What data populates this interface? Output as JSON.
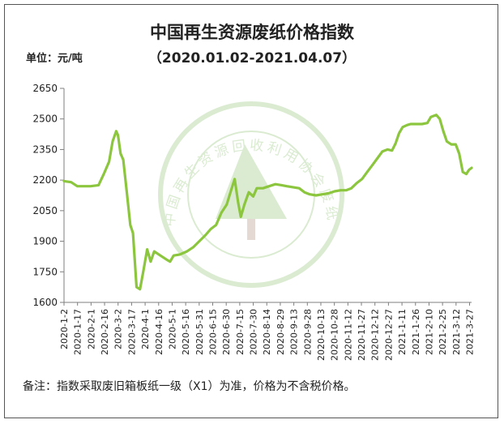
{
  "title": "中国再生资源废纸价格指数",
  "subtitle": "（2020.01.02-2021.04.07）",
  "unit_label": "单位：元/吨",
  "note": "备注：指数采取废旧箱板纸一级（X1）为准，价格为不含税价格。",
  "watermark_text": "中国再生资源回收利用协会废纸分会",
  "colors": {
    "line": "#8cc63f",
    "axis": "#7f7f7f",
    "grid": "#7f7f7f",
    "watermark": "#5aa832"
  },
  "chart_data": {
    "type": "line",
    "ylim": [
      1600,
      2650
    ],
    "yticks": [
      "1600",
      "1750",
      "1900",
      "2050",
      "2200",
      "2350",
      "2500",
      "2650"
    ],
    "categories": [
      "2020-1-2",
      "2020-1-17",
      "2020-2-1",
      "2020-2-16",
      "2020-3-2",
      "2020-3-17",
      "2020-4-1",
      "2020-4-16",
      "2020-5-1",
      "2020-5-16",
      "2020-5-31",
      "2020-6-15",
      "2020-6-30",
      "2020-7-15",
      "2020-7-30",
      "2020-8-14",
      "2020-8-29",
      "2020-9-13",
      "2020-9-28",
      "2020-10-13",
      "2020-10-28",
      "2020-11-12",
      "2020-11-27",
      "2020-12-12",
      "2020-12-27",
      "2021-1-11",
      "2021-1-26",
      "2021-2-10",
      "2021-2-25",
      "2021-3-12",
      "2021-3-27"
    ],
    "grid": false,
    "series": [
      {
        "points": [
          [
            "2020-01-02",
            2195
          ],
          [
            "2020-01-10",
            2190
          ],
          [
            "2020-01-17",
            2170
          ],
          [
            "2020-01-25",
            2170
          ],
          [
            "2020-02-01",
            2170
          ],
          [
            "2020-02-10",
            2175
          ],
          [
            "2020-02-16",
            2230
          ],
          [
            "2020-02-22",
            2290
          ],
          [
            "2020-02-26",
            2390
          ],
          [
            "2020-03-01",
            2440
          ],
          [
            "2020-03-03",
            2420
          ],
          [
            "2020-03-06",
            2330
          ],
          [
            "2020-03-09",
            2300
          ],
          [
            "2020-03-13",
            2140
          ],
          [
            "2020-03-17",
            1980
          ],
          [
            "2020-03-20",
            1940
          ],
          [
            "2020-03-24",
            1675
          ],
          [
            "2020-03-28",
            1665
          ],
          [
            "2020-04-01",
            1760
          ],
          [
            "2020-04-05",
            1860
          ],
          [
            "2020-04-09",
            1800
          ],
          [
            "2020-04-13",
            1850
          ],
          [
            "2020-04-20",
            1830
          ],
          [
            "2020-04-27",
            1810
          ],
          [
            "2020-05-01",
            1800
          ],
          [
            "2020-05-05",
            1830
          ],
          [
            "2020-05-12",
            1835
          ],
          [
            "2020-05-20",
            1850
          ],
          [
            "2020-05-27",
            1870
          ],
          [
            "2020-06-03",
            1900
          ],
          [
            "2020-06-10",
            1930
          ],
          [
            "2020-06-16",
            1960
          ],
          [
            "2020-06-22",
            1980
          ],
          [
            "2020-06-28",
            2040
          ],
          [
            "2020-07-04",
            2080
          ],
          [
            "2020-07-09",
            2150
          ],
          [
            "2020-07-13",
            2205
          ],
          [
            "2020-07-17",
            2090
          ],
          [
            "2020-07-20",
            2020
          ],
          [
            "2020-07-24",
            2080
          ],
          [
            "2020-07-29",
            2140
          ],
          [
            "2020-08-03",
            2120
          ],
          [
            "2020-08-07",
            2160
          ],
          [
            "2020-08-14",
            2160
          ],
          [
            "2020-08-21",
            2170
          ],
          [
            "2020-08-28",
            2180
          ],
          [
            "2020-09-04",
            2175
          ],
          [
            "2020-09-10",
            2170
          ],
          [
            "2020-09-17",
            2165
          ],
          [
            "2020-09-24",
            2160
          ],
          [
            "2020-09-30",
            2140
          ],
          [
            "2020-10-06",
            2130
          ],
          [
            "2020-10-13",
            2125
          ],
          [
            "2020-10-20",
            2130
          ],
          [
            "2020-10-27",
            2135
          ],
          [
            "2020-11-03",
            2145
          ],
          [
            "2020-11-10",
            2150
          ],
          [
            "2020-11-16",
            2150
          ],
          [
            "2020-11-22",
            2160
          ],
          [
            "2020-11-28",
            2185
          ],
          [
            "2020-12-04",
            2205
          ],
          [
            "2020-12-10",
            2240
          ],
          [
            "2020-12-16",
            2275
          ],
          [
            "2020-12-22",
            2310
          ],
          [
            "2020-12-27",
            2340
          ],
          [
            "2021-01-02",
            2350
          ],
          [
            "2021-01-07",
            2345
          ],
          [
            "2021-01-11",
            2380
          ],
          [
            "2021-01-15",
            2430
          ],
          [
            "2021-01-19",
            2460
          ],
          [
            "2021-01-24",
            2470
          ],
          [
            "2021-01-28",
            2475
          ],
          [
            "2021-02-02",
            2475
          ],
          [
            "2021-02-10",
            2475
          ],
          [
            "2021-02-16",
            2480
          ],
          [
            "2021-02-20",
            2510
          ],
          [
            "2021-02-26",
            2520
          ],
          [
            "2021-03-02",
            2500
          ],
          [
            "2021-03-06",
            2440
          ],
          [
            "2021-03-10",
            2390
          ],
          [
            "2021-03-15",
            2375
          ],
          [
            "2021-03-20",
            2375
          ],
          [
            "2021-03-24",
            2330
          ],
          [
            "2021-03-28",
            2240
          ],
          [
            "2021-04-01",
            2230
          ],
          [
            "2021-04-04",
            2250
          ],
          [
            "2021-04-07",
            2260
          ]
        ]
      }
    ]
  }
}
